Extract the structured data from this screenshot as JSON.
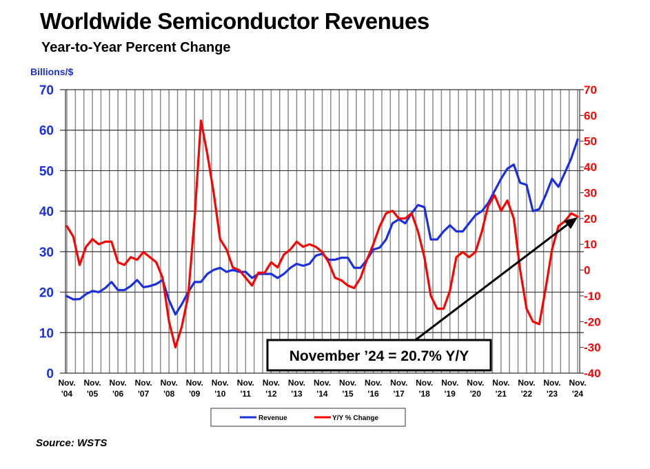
{
  "title": "Worldwide Semiconductor Revenues",
  "subtitle": "Year-to-Year Percent Change",
  "source": "Source: WSTS",
  "chart_data": {
    "type": "line",
    "title": "Worldwide Semiconductor Revenues",
    "subtitle": "Year-to-Year Percent Change",
    "ylabel_left": "Billions/$",
    "ylim_left": [
      0,
      70
    ],
    "yticks_left": [
      0,
      10,
      20,
      30,
      40,
      50,
      60,
      70
    ],
    "ylim_right": [
      -40,
      70
    ],
    "yticks_right": [
      -40,
      -30,
      -20,
      -10,
      0,
      10,
      20,
      30,
      40,
      50,
      60,
      70
    ],
    "xtick_labels": [
      [
        "Nov.",
        "'04"
      ],
      [
        "Nov.",
        "'05"
      ],
      [
        "Nov.",
        "'06"
      ],
      [
        "Nov.",
        "'07"
      ],
      [
        "Nov.",
        "'08"
      ],
      [
        "Nov.",
        "'09"
      ],
      [
        "Nov.",
        "'10"
      ],
      [
        "Nov.",
        "'11"
      ],
      [
        "Nov.",
        "'12"
      ],
      [
        "Nov.",
        "'13"
      ],
      [
        "Nov.",
        "'14"
      ],
      [
        "Nov.",
        "'15"
      ],
      [
        "Nov.",
        "'16"
      ],
      [
        "Nov.",
        "'17"
      ],
      [
        "Nov.",
        "'18"
      ],
      [
        "Nov.",
        "'19"
      ],
      [
        "Nov.",
        "'20"
      ],
      [
        "Nov.",
        "'21"
      ],
      [
        "Nov.",
        "'22"
      ],
      [
        "Nov.",
        "'23"
      ],
      [
        "Nov.",
        "'24"
      ]
    ],
    "grid": true,
    "legend_position": "bottom",
    "colors": {
      "revenue": "#1a2fe0",
      "yoy": "#ff0000",
      "axis_left": "#1a2fe0",
      "axis_right": "#ff0000"
    },
    "x": [
      "2004-11",
      "2005-02",
      "2005-05",
      "2005-08",
      "2005-11",
      "2006-02",
      "2006-05",
      "2006-08",
      "2006-11",
      "2007-02",
      "2007-05",
      "2007-08",
      "2007-11",
      "2008-02",
      "2008-05",
      "2008-08",
      "2008-11",
      "2009-02",
      "2009-05",
      "2009-08",
      "2009-11",
      "2010-02",
      "2010-05",
      "2010-08",
      "2010-11",
      "2011-02",
      "2011-05",
      "2011-08",
      "2011-11",
      "2012-02",
      "2012-05",
      "2012-08",
      "2012-11",
      "2013-02",
      "2013-05",
      "2013-08",
      "2013-11",
      "2014-02",
      "2014-05",
      "2014-08",
      "2014-11",
      "2015-02",
      "2015-05",
      "2015-08",
      "2015-11",
      "2016-02",
      "2016-05",
      "2016-08",
      "2016-11",
      "2017-02",
      "2017-05",
      "2017-08",
      "2017-11",
      "2018-02",
      "2018-05",
      "2018-08",
      "2018-11",
      "2019-02",
      "2019-05",
      "2019-08",
      "2019-11",
      "2020-02",
      "2020-05",
      "2020-08",
      "2020-11",
      "2021-02",
      "2021-05",
      "2021-08",
      "2021-11",
      "2022-02",
      "2022-05",
      "2022-08",
      "2022-11",
      "2023-02",
      "2023-05",
      "2023-08",
      "2023-11",
      "2024-02",
      "2024-05",
      "2024-08",
      "2024-11"
    ],
    "series": [
      {
        "name": "Revenue",
        "axis": "left",
        "values": [
          19,
          18.2,
          18.3,
          19.5,
          20.3,
          20,
          21,
          22.5,
          20.5,
          20.5,
          21.5,
          23,
          21.2,
          21.5,
          22,
          23,
          18,
          14.5,
          17,
          20,
          22.5,
          22.5,
          24.5,
          25.5,
          26,
          25,
          25.5,
          25,
          25,
          23.5,
          24.5,
          24.5,
          24.5,
          23.5,
          24.5,
          26,
          27,
          26.5,
          27,
          29,
          29.5,
          28,
          28,
          28.5,
          28.5,
          26,
          26,
          28,
          30.5,
          31,
          33,
          37,
          38,
          37,
          39.5,
          41.5,
          41,
          33,
          33,
          35,
          36.5,
          35,
          35,
          37,
          39,
          40,
          42,
          45,
          48,
          50.5,
          51.5,
          47,
          46.5,
          40,
          40.5,
          44,
          48,
          46,
          49.5,
          53,
          57.7
        ]
      },
      {
        "name": "Y/Y % Change",
        "axis": "right",
        "values": [
          17,
          13,
          2,
          9,
          12,
          10,
          11,
          11,
          3,
          2,
          5,
          4,
          7,
          5,
          3,
          -3,
          -20,
          -30,
          -22,
          -10,
          20,
          58,
          45,
          30,
          12,
          8,
          1,
          0,
          -3,
          -6,
          -1,
          -1,
          3,
          1,
          6,
          8,
          11,
          9,
          10,
          9,
          7,
          3,
          -3,
          -4,
          -6,
          -7,
          -3,
          4,
          10,
          17,
          22,
          23,
          20,
          20,
          22,
          15,
          5,
          -10,
          -15,
          -15,
          -8,
          5,
          7,
          5,
          7,
          15,
          25,
          29,
          23,
          27,
          20,
          0,
          -15,
          -20,
          -21,
          -7,
          8,
          17,
          19,
          22,
          20.7
        ]
      }
    ],
    "annotation": "November ’24 = 20.7% Y/Y"
  }
}
